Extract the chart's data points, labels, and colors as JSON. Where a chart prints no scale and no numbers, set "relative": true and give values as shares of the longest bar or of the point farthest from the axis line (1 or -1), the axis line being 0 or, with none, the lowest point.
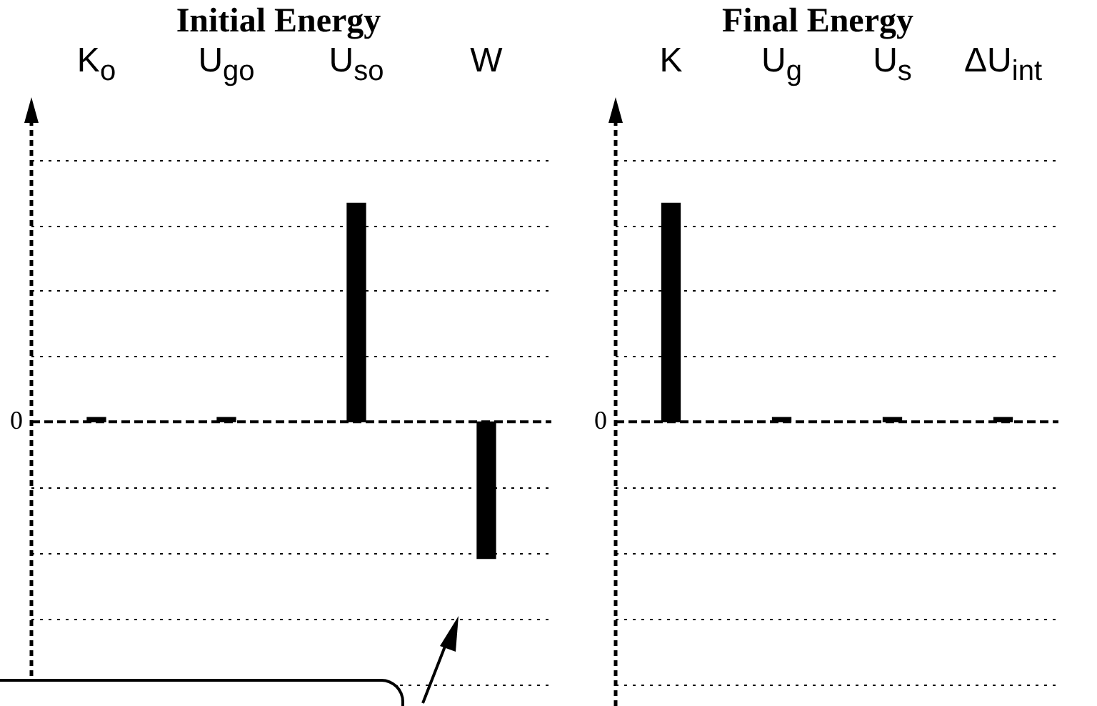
{
  "chart_data": [
    {
      "type": "bar",
      "title": "Initial Energy",
      "categories": [
        "K$_{o}$",
        "U$_{go}$",
        "U$_{so}$",
        "W"
      ],
      "values": [
        0.02,
        0.02,
        1,
        -0.625
      ],
      "color": "#000000",
      "relative": true,
      "grid": true,
      "legend": false,
      "ref_lines": [
        {
          "axis": "y",
          "value": 0,
          "label": "0"
        }
      ]
    },
    {
      "type": "bar",
      "title": "Final Energy",
      "categories": [
        "K",
        "U$_{g}$",
        "U$_{s}$",
        "ΔU$_{int}$"
      ],
      "values": [
        1,
        0.02,
        0.02,
        0.02
      ],
      "color": "#000000",
      "relative": true,
      "grid": true,
      "legend": false,
      "ref_lines": [
        {
          "axis": "y",
          "value": 0,
          "label": "0"
        }
      ]
    }
  ]
}
